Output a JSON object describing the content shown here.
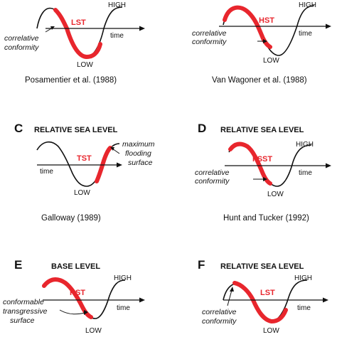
{
  "colors": {
    "curve": "#111111",
    "highlight": "#e8262d",
    "text": "#111111"
  },
  "panels": [
    {
      "id": "A",
      "letter": "",
      "header": "",
      "high": "HIGH",
      "low": "LOW",
      "time": "time",
      "tract": "LST",
      "citation": "Posamentier et al. (1988)",
      "notes": [
        "correlative",
        "conformity"
      ]
    },
    {
      "id": "B",
      "letter": "",
      "header": "",
      "high": "HIGH",
      "low": "LOW",
      "time": "time",
      "tract": "HST",
      "citation": "Van Wagoner et al. (1988)",
      "notes": [
        "correlative",
        "conformity"
      ]
    },
    {
      "id": "C",
      "letter": "C",
      "header": "RELATIVE SEA LEVEL",
      "high": "HIGH",
      "low": "LOW",
      "time": "time",
      "tract": "TST",
      "citation": "Galloway (1989)",
      "notes": [
        "maximum",
        "flooding",
        "surface"
      ]
    },
    {
      "id": "D",
      "letter": "D",
      "header": "RELATIVE SEA LEVEL",
      "high": "HIGH",
      "low": "LOW",
      "time": "time",
      "tract": "FSST",
      "citation": "Hunt and Tucker (1992)",
      "notes": [
        "correlative",
        "conformity"
      ]
    },
    {
      "id": "E",
      "letter": "E",
      "header": "BASE LEVEL",
      "high": "HIGH",
      "low": "LOW",
      "time": "time",
      "tract": "RST",
      "citation": "",
      "notes": [
        "conformable",
        "transgressive",
        "surface"
      ]
    },
    {
      "id": "F",
      "letter": "F",
      "header": "RELATIVE SEA LEVEL",
      "high": "HIGH",
      "low": "LOW",
      "time": "time",
      "tract": "LST",
      "citation": "",
      "notes": [
        "correlative",
        "conformity"
      ]
    }
  ]
}
